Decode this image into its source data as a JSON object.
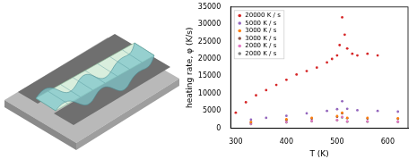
{
  "chart_data": {
    "type": "scatter",
    "x_label": "T (K)",
    "y_label": "heating rate, φ (K/s)",
    "xlim": [
      290,
      640
    ],
    "xticks": [
      300,
      400,
      500,
      600
    ],
    "ylim": [
      0,
      35000
    ],
    "yticks": [
      0,
      5000,
      10000,
      15000,
      20000,
      25000,
      30000,
      35000
    ],
    "grid": false,
    "legend": "upper left",
    "marker": "circle",
    "series": [
      {
        "name": "20000 K / s",
        "color": "#d62728",
        "x": [
          300,
          320,
          340,
          360,
          380,
          400,
          420,
          440,
          460,
          480,
          490,
          500,
          505,
          510,
          515,
          520,
          530,
          540,
          560,
          580
        ],
        "values": [
          4500,
          7500,
          9500,
          11000,
          12500,
          14000,
          15500,
          16500,
          17500,
          19000,
          20000,
          21000,
          24000,
          32000,
          27000,
          23000,
          21500,
          21000,
          21500,
          21000
        ]
      },
      {
        "name": "5000 K / s",
        "color": "#9467bd",
        "x": [
          330,
          360,
          400,
          440,
          480,
          500,
          510,
          520,
          540,
          580,
          620
        ],
        "values": [
          2500,
          3000,
          3600,
          4300,
          5000,
          5500,
          7800,
          5600,
          5200,
          5000,
          4800
        ]
      },
      {
        "name": "3000 K / s",
        "color": "#ff7f0e",
        "x": [
          330,
          400,
          450,
          500,
          510,
          520,
          560,
          620
        ],
        "values": [
          1800,
          2600,
          3000,
          3500,
          4500,
          3000,
          3000,
          2900
        ]
      },
      {
        "name": "3000 K / s",
        "color": "#8c564b",
        "x": [
          330,
          400,
          450,
          500,
          510,
          520,
          560,
          620
        ],
        "values": [
          1700,
          2400,
          2800,
          3300,
          4300,
          2900,
          2800,
          2700
        ]
      },
      {
        "name": "2000 K / s",
        "color": "#e377c2",
        "x": [
          330,
          400,
          450,
          500,
          510,
          520,
          560,
          620
        ],
        "values": [
          1300,
          1800,
          2100,
          2400,
          3300,
          2000,
          2000,
          1900
        ]
      },
      {
        "name": "2000 K / s",
        "color": "#7f7f7f",
        "x": [
          330,
          400,
          450,
          500,
          510,
          520,
          560,
          620
        ],
        "values": [
          1200,
          1700,
          2000,
          2300,
          3100,
          1900,
          1900,
          1800
        ]
      }
    ]
  }
}
